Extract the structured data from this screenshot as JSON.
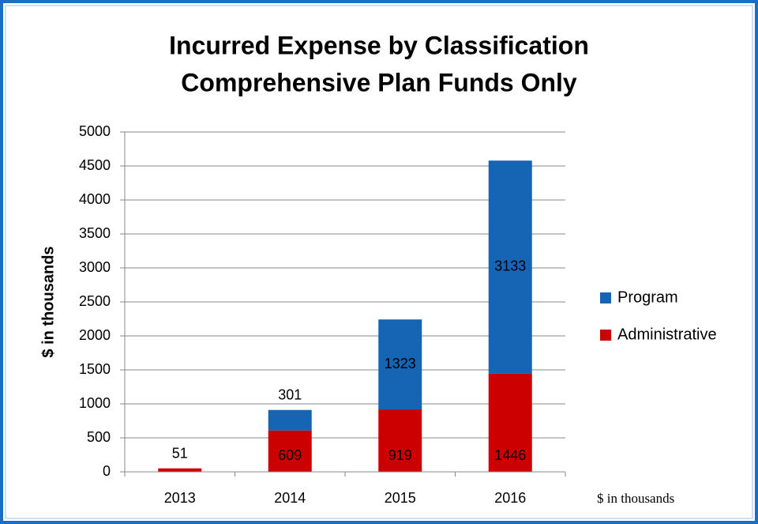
{
  "chart_data": {
    "type": "stacked_bar",
    "title": "Incurred Expense by Classification",
    "subtitle": "Comprehensive Plan Funds Only",
    "y_label": "$ in thousands",
    "note": "$ in thousands",
    "categories": [
      "2013",
      "2014",
      "2015",
      "2016"
    ],
    "series": [
      {
        "name": "Administrative",
        "color": "#cc0000",
        "values": [
          51,
          609,
          919,
          1446
        ]
      },
      {
        "name": "Program",
        "color": "#1565b4",
        "values": [
          null,
          301,
          1323,
          3133
        ]
      }
    ],
    "ylim": [
      0,
      5000
    ],
    "yticks": [
      0,
      500,
      1000,
      1500,
      2000,
      2500,
      3000,
      3500,
      4000,
      4500,
      5000
    ],
    "grid": true,
    "legend": "right"
  }
}
